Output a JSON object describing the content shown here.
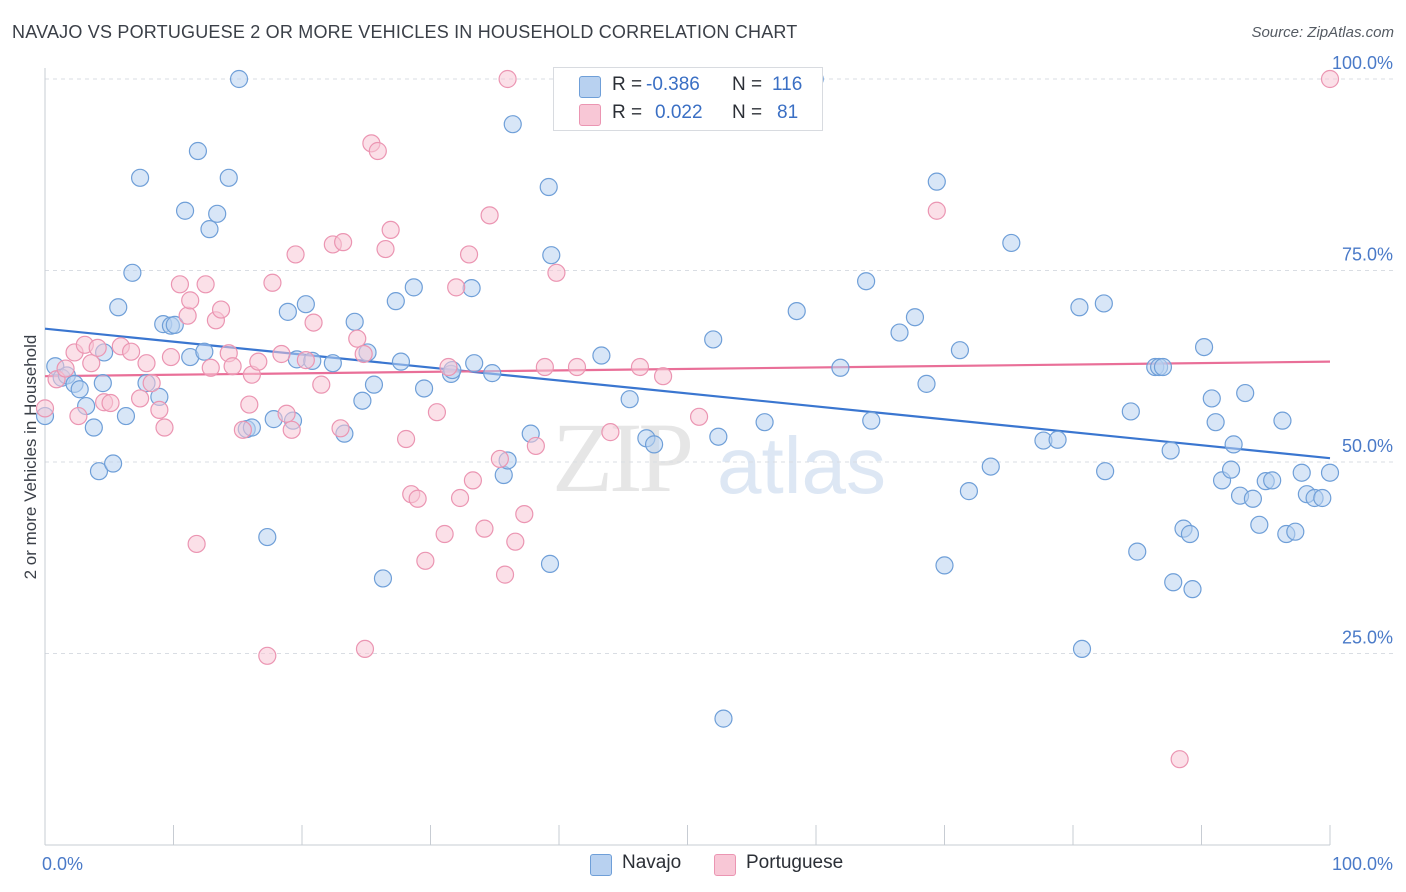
{
  "header": {
    "title": "NAVAJO VS PORTUGUESE 2 OR MORE VEHICLES IN HOUSEHOLD CORRELATION CHART",
    "source": "Source: ZipAtlas.com"
  },
  "watermark": {
    "zip": "ZIP",
    "atlas": "atlas"
  },
  "legend": {
    "navajo": {
      "r_label": "R =",
      "r_value": "-0.386",
      "n_label": "N =",
      "n_value": "116"
    },
    "portuguese": {
      "r_label": "R =",
      "r_value": "0.022",
      "n_label": "N =",
      "n_value": "81"
    }
  },
  "bottom_legend": {
    "navajo": "Navajo",
    "portuguese": "Portuguese"
  },
  "colors": {
    "navajo_fill": "#b8d1f0",
    "navajo_stroke": "#6f9fd8",
    "navajo_line": "#3a76d0",
    "portuguese_fill": "#f8c7d6",
    "portuguese_stroke": "#eb95b2",
    "portuguese_line": "#e96f98",
    "grid": "#d9dde3",
    "axis_text": "#4a7ac8"
  },
  "chart_data": {
    "type": "scatter",
    "title": "NAVAJO VS PORTUGUESE 2 OR MORE VEHICLES IN HOUSEHOLD CORRELATION CHART",
    "xlabel": "",
    "ylabel": "2 or more Vehicles in Household",
    "xlim": [
      0,
      100
    ],
    "ylim": [
      0,
      102
    ],
    "x_tick_labels": [
      "0.0%",
      "100.0%"
    ],
    "y_ticks": [
      25,
      50,
      75,
      100
    ],
    "y_tick_labels": [
      "25.0%",
      "50.0%",
      "75.0%",
      "100.0%"
    ],
    "grid": true,
    "series": [
      {
        "name": "Navajo",
        "r": -0.386,
        "n": 116,
        "trend": {
          "x": [
            0,
            100
          ],
          "y": [
            67.4,
            50.5
          ]
        },
        "points": [
          [
            0.0,
            56
          ],
          [
            0.8,
            62.5
          ],
          [
            1.3,
            61
          ],
          [
            1.7,
            61.3
          ],
          [
            2.3,
            60.2
          ],
          [
            2.7,
            59.5
          ],
          [
            3.2,
            57.3
          ],
          [
            3.8,
            54.5
          ],
          [
            4.2,
            48.8
          ],
          [
            4.5,
            60.3
          ],
          [
            4.6,
            64.3
          ],
          [
            5.3,
            49.8
          ],
          [
            5.7,
            70.2
          ],
          [
            6.3,
            56
          ],
          [
            6.8,
            74.7
          ],
          [
            7.4,
            87.1
          ],
          [
            7.9,
            60.3
          ],
          [
            8.9,
            58.5
          ],
          [
            9.2,
            68
          ],
          [
            9.8,
            67.8
          ],
          [
            10.1,
            67.9
          ],
          [
            10.9,
            82.8
          ],
          [
            11.3,
            63.7
          ],
          [
            11.9,
            90.6
          ],
          [
            12.4,
            64.4
          ],
          [
            12.8,
            80.4
          ],
          [
            13.4,
            82.4
          ],
          [
            14.3,
            87.1
          ],
          [
            15.1,
            100
          ],
          [
            15.7,
            54.3
          ],
          [
            16.1,
            54.5
          ],
          [
            17.3,
            40.2
          ],
          [
            17.8,
            55.6
          ],
          [
            18.9,
            69.6
          ],
          [
            19.3,
            55.4
          ],
          [
            19.6,
            63.4
          ],
          [
            20.3,
            70.6
          ],
          [
            20.8,
            63.2
          ],
          [
            22.4,
            62.9
          ],
          [
            23.3,
            53.7
          ],
          [
            24.1,
            68.3
          ],
          [
            24.7,
            58
          ],
          [
            25.1,
            64.3
          ],
          [
            25.6,
            60.1
          ],
          [
            26.3,
            34.8
          ],
          [
            27.3,
            71
          ],
          [
            27.7,
            63.1
          ],
          [
            28.7,
            72.8
          ],
          [
            29.5,
            59.6
          ],
          [
            31.6,
            61.5
          ],
          [
            31.7,
            62
          ],
          [
            33.2,
            72.7
          ],
          [
            33.4,
            62.9
          ],
          [
            34.8,
            61.6
          ],
          [
            35.7,
            48.3
          ],
          [
            36.0,
            50.2
          ],
          [
            36.4,
            94.1
          ],
          [
            37.8,
            53.7
          ],
          [
            39.2,
            85.9
          ],
          [
            39.4,
            77
          ],
          [
            39.3,
            36.7
          ],
          [
            43.3,
            63.9
          ],
          [
            45.5,
            58.2
          ],
          [
            46.8,
            53.1
          ],
          [
            47.4,
            52.3
          ],
          [
            52.4,
            53.3
          ],
          [
            52.8,
            16.5
          ],
          [
            56.0,
            55.2
          ],
          [
            58.5,
            69.7
          ],
          [
            59.5,
            100
          ],
          [
            59.9,
            100
          ],
          [
            61.9,
            62.3
          ],
          [
            64.3,
            55.4
          ],
          [
            63.9,
            73.6
          ],
          [
            66.5,
            66.9
          ],
          [
            67.7,
            68.9
          ],
          [
            68.6,
            60.2
          ],
          [
            69.4,
            86.6
          ],
          [
            70.0,
            36.5
          ],
          [
            71.2,
            64.6
          ],
          [
            71.9,
            46.2
          ],
          [
            73.6,
            49.4
          ],
          [
            75.2,
            78.6
          ],
          [
            77.7,
            52.8
          ],
          [
            78.8,
            52.9
          ],
          [
            80.5,
            70.2
          ],
          [
            80.7,
            25.6
          ],
          [
            82.4,
            70.7
          ],
          [
            82.5,
            48.8
          ],
          [
            84.5,
            56.6
          ],
          [
            85.0,
            38.3
          ],
          [
            86.4,
            62.4
          ],
          [
            86.7,
            62.4
          ],
          [
            87.0,
            62.4
          ],
          [
            87.6,
            51.5
          ],
          [
            87.8,
            34.3
          ],
          [
            88.6,
            41.3
          ],
          [
            89.1,
            40.6
          ],
          [
            89.3,
            33.4
          ],
          [
            90.2,
            65
          ],
          [
            90.8,
            58.3
          ],
          [
            91.1,
            55.2
          ],
          [
            91.6,
            47.6
          ],
          [
            92.3,
            49
          ],
          [
            92.5,
            52.3
          ],
          [
            93.0,
            45.6
          ],
          [
            93.4,
            59
          ],
          [
            94.0,
            45.2
          ],
          [
            94.5,
            41.8
          ],
          [
            95.0,
            47.5
          ],
          [
            95.5,
            47.6
          ],
          [
            96.3,
            55.4
          ],
          [
            96.6,
            40.6
          ],
          [
            97.3,
            40.9
          ],
          [
            97.8,
            48.6
          ],
          [
            98.2,
            45.8
          ],
          [
            98.8,
            45.3
          ],
          [
            99.4,
            45.3
          ],
          [
            100.0,
            48.6
          ],
          [
            52.0,
            66.0
          ]
        ]
      },
      {
        "name": "Portuguese",
        "r": 0.022,
        "n": 81,
        "trend": {
          "x": [
            0,
            100
          ],
          "y": [
            61.2,
            63.1
          ]
        },
        "points": [
          [
            0.0,
            57
          ],
          [
            0.9,
            60.8
          ],
          [
            1.6,
            62.2
          ],
          [
            2.3,
            64.3
          ],
          [
            2.6,
            56
          ],
          [
            3.1,
            65.3
          ],
          [
            3.6,
            62.9
          ],
          [
            4.1,
            64.9
          ],
          [
            4.6,
            57.8
          ],
          [
            5.1,
            57.7
          ],
          [
            5.9,
            65.1
          ],
          [
            6.7,
            64.4
          ],
          [
            7.4,
            58.3
          ],
          [
            7.9,
            62.9
          ],
          [
            8.3,
            60.3
          ],
          [
            8.9,
            56.8
          ],
          [
            9.3,
            54.5
          ],
          [
            9.8,
            63.7
          ],
          [
            10.5,
            73.2
          ],
          [
            11.1,
            69.1
          ],
          [
            11.3,
            71.1
          ],
          [
            11.8,
            39.3
          ],
          [
            12.5,
            73.2
          ],
          [
            12.9,
            62.3
          ],
          [
            13.3,
            68.5
          ],
          [
            13.7,
            69.9
          ],
          [
            14.3,
            64.2
          ],
          [
            14.6,
            62.5
          ],
          [
            15.4,
            54.2
          ],
          [
            15.9,
            57.5
          ],
          [
            16.1,
            61.4
          ],
          [
            16.6,
            63.1
          ],
          [
            17.3,
            24.7
          ],
          [
            17.7,
            73.4
          ],
          [
            18.4,
            64.1
          ],
          [
            18.8,
            56.3
          ],
          [
            19.2,
            54.2
          ],
          [
            19.5,
            77.1
          ],
          [
            20.3,
            63.3
          ],
          [
            20.9,
            68.2
          ],
          [
            21.5,
            60.1
          ],
          [
            22.4,
            78.4
          ],
          [
            23.0,
            54.4
          ],
          [
            23.2,
            78.7
          ],
          [
            24.3,
            66.1
          ],
          [
            24.8,
            64.1
          ],
          [
            24.9,
            25.6
          ],
          [
            25.4,
            91.6
          ],
          [
            25.9,
            90.6
          ],
          [
            26.5,
            77.8
          ],
          [
            26.9,
            80.3
          ],
          [
            28.1,
            53
          ],
          [
            28.5,
            45.8
          ],
          [
            29.0,
            45.2
          ],
          [
            29.6,
            37.1
          ],
          [
            30.5,
            56.5
          ],
          [
            31.1,
            40.6
          ],
          [
            31.4,
            62.4
          ],
          [
            32.0,
            72.8
          ],
          [
            32.3,
            45.3
          ],
          [
            33.0,
            77.1
          ],
          [
            33.3,
            47.6
          ],
          [
            34.2,
            41.3
          ],
          [
            34.6,
            82.2
          ],
          [
            35.4,
            50.4
          ],
          [
            35.8,
            35.3
          ],
          [
            36.6,
            39.6
          ],
          [
            37.3,
            43.2
          ],
          [
            38.2,
            52.1
          ],
          [
            38.9,
            62.4
          ],
          [
            39.8,
            74.7
          ],
          [
            41.4,
            62.4
          ],
          [
            44.0,
            53.9
          ],
          [
            46.3,
            62.4
          ],
          [
            48.1,
            61.2
          ],
          [
            50.9,
            55.9
          ],
          [
            52.5,
            100
          ],
          [
            69.4,
            82.8
          ],
          [
            88.3,
            11.2
          ],
          [
            100.0,
            100
          ],
          [
            36.0,
            100
          ]
        ]
      }
    ]
  }
}
